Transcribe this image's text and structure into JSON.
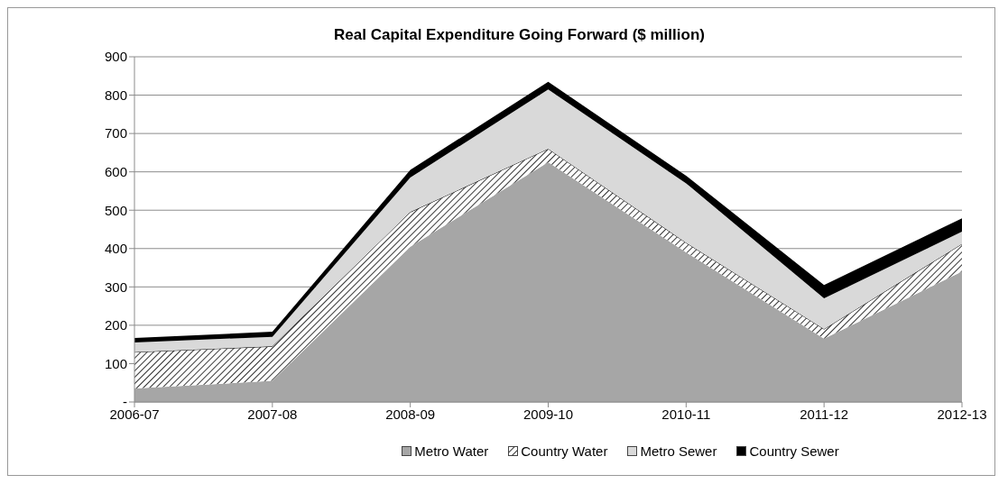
{
  "chart_data": {
    "type": "area",
    "title": "Real Capital Expenditure Going Forward ($ million)",
    "categories": [
      "2006-07",
      "2007-08",
      "2008-09",
      "2009-10",
      "2010-11",
      "2011-12",
      "2012-13"
    ],
    "stacked": true,
    "series": [
      {
        "name": "Metro Water",
        "color": "#a6a6a6",
        "values": [
          35,
          55,
          405,
          625,
          390,
          165,
          340
        ]
      },
      {
        "name": "Country Water",
        "color": "#000000",
        "values": [
          95,
          90,
          90,
          35,
          25,
          25,
          72
        ]
      },
      {
        "name": "Metro Sewer",
        "color": "#d9d9d9",
        "values": [
          25,
          25,
          90,
          155,
          155,
          80,
          32
        ]
      },
      {
        "name": "Country Sewer",
        "color": "#000000",
        "values": [
          12,
          13,
          20,
          20,
          20,
          35,
          35
        ]
      }
    ],
    "ylim": [
      0,
      900
    ],
    "yticks": [
      {
        "value": 0,
        "label": "-"
      },
      100,
      200,
      300,
      400,
      500,
      600,
      700,
      800,
      900
    ],
    "grid": "y",
    "legend": "bottom"
  }
}
